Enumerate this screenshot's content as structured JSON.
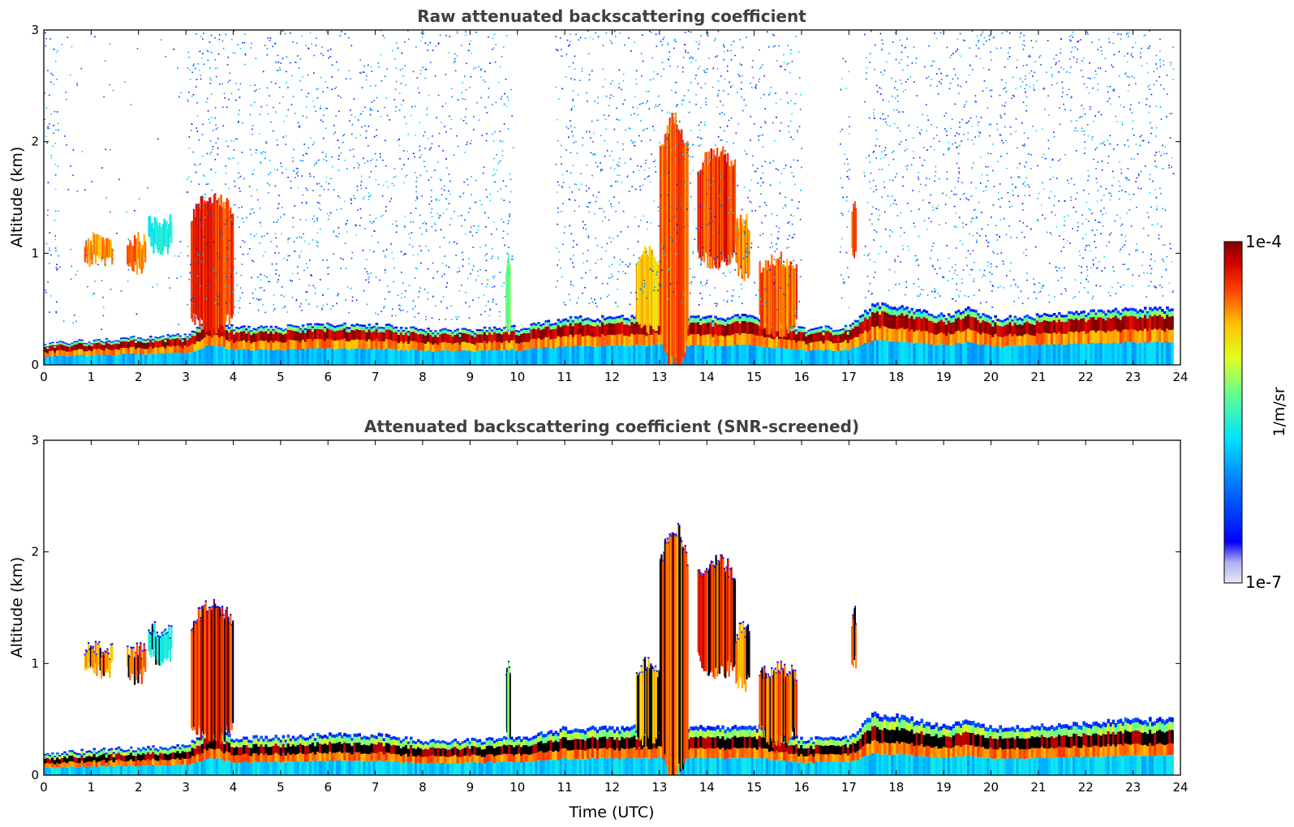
{
  "chart_data": [
    {
      "type": "heatmap",
      "title": "Raw attenuated backscattering coefficient",
      "xlabel": "",
      "ylabel": "Altitude (km)",
      "xlim": [
        0,
        24
      ],
      "ylim": [
        0,
        3
      ],
      "xticks": [
        "0",
        "1",
        "2",
        "3",
        "4",
        "5",
        "6",
        "7",
        "8",
        "9",
        "10",
        "11",
        "12",
        "13",
        "14",
        "15",
        "16",
        "17",
        "18",
        "19",
        "20",
        "21",
        "22",
        "23",
        "24"
      ],
      "yticks": [
        "0",
        "1",
        "2",
        "3"
      ],
      "screened": false,
      "boundary_layer_top_km": [
        [
          0,
          0.18
        ],
        [
          1,
          0.22
        ],
        [
          2,
          0.24
        ],
        [
          3,
          0.26
        ],
        [
          3.5,
          0.45
        ],
        [
          4,
          0.33
        ],
        [
          5,
          0.34
        ],
        [
          6,
          0.36
        ],
        [
          7,
          0.36
        ],
        [
          8,
          0.31
        ],
        [
          9,
          0.31
        ],
        [
          9.8,
          0.34
        ],
        [
          10,
          0.33
        ],
        [
          11,
          0.42
        ],
        [
          12,
          0.42
        ],
        [
          13,
          0.45
        ],
        [
          14,
          0.42
        ],
        [
          15,
          0.44
        ],
        [
          16,
          0.32
        ],
        [
          17,
          0.34
        ],
        [
          17.5,
          0.55
        ],
        [
          18,
          0.53
        ],
        [
          19,
          0.44
        ],
        [
          19.5,
          0.5
        ],
        [
          20,
          0.42
        ],
        [
          21,
          0.44
        ],
        [
          22,
          0.47
        ],
        [
          23,
          0.5
        ],
        [
          23.8,
          0.5
        ]
      ],
      "cloud_features": [
        {
          "t0": 0.85,
          "t1": 1.45,
          "z0": 0.93,
          "z1": 1.12,
          "level": 0.85
        },
        {
          "t0": 1.75,
          "t1": 2.15,
          "z0": 0.88,
          "z1": 1.12,
          "level": 0.9
        },
        {
          "t0": 2.2,
          "t1": 2.7,
          "z0": 1.05,
          "z1": 1.3,
          "level": 0.5
        },
        {
          "t0": 3.1,
          "t1": 4.0,
          "z0": 0.3,
          "z1": 1.5,
          "level": 0.95
        },
        {
          "t0": 9.75,
          "t1": 9.85,
          "z0": 0.3,
          "z1": 0.95,
          "level": 0.6
        },
        {
          "t0": 12.5,
          "t1": 13.0,
          "z0": 0.3,
          "z1": 1.0,
          "level": 0.8
        },
        {
          "t0": 13.0,
          "t1": 13.6,
          "z0": 0.0,
          "z1": 2.2,
          "level": 0.9
        },
        {
          "t0": 13.8,
          "t1": 14.6,
          "z0": 0.9,
          "z1": 1.9,
          "level": 0.95
        },
        {
          "t0": 14.6,
          "t1": 14.9,
          "z0": 0.8,
          "z1": 1.3,
          "level": 0.85
        },
        {
          "t0": 15.1,
          "t1": 15.9,
          "z0": 0.3,
          "z1": 0.95,
          "level": 0.9
        },
        {
          "t0": 17.05,
          "t1": 17.15,
          "z0": 1.0,
          "z1": 1.45,
          "level": 0.9
        }
      ],
      "clear_gaps_hours": [
        [
          2.9,
          3.0
        ],
        [
          9.9,
          10.8
        ],
        [
          16.0,
          16.8
        ],
        [
          17.0,
          17.3
        ]
      ]
    },
    {
      "type": "heatmap",
      "title": "Attenuated backscattering coefficient (SNR-screened)",
      "xlabel": "Time (UTC)",
      "ylabel": "Altitude (km)",
      "xlim": [
        0,
        24
      ],
      "ylim": [
        0,
        3
      ],
      "xticks": [
        "0",
        "1",
        "2",
        "3",
        "4",
        "5",
        "6",
        "7",
        "8",
        "9",
        "10",
        "11",
        "12",
        "13",
        "14",
        "15",
        "16",
        "17",
        "18",
        "19",
        "20",
        "21",
        "22",
        "23",
        "24"
      ],
      "yticks": [
        "0",
        "1",
        "2",
        "3"
      ],
      "screened": true
    }
  ],
  "colorbar": {
    "label": "1/m/sr",
    "max_label": "1e-4",
    "min_label": "1e-7",
    "scale": "log",
    "colormap": "jet",
    "low_color": "#e6e6f5",
    "high_color": "#800000"
  }
}
